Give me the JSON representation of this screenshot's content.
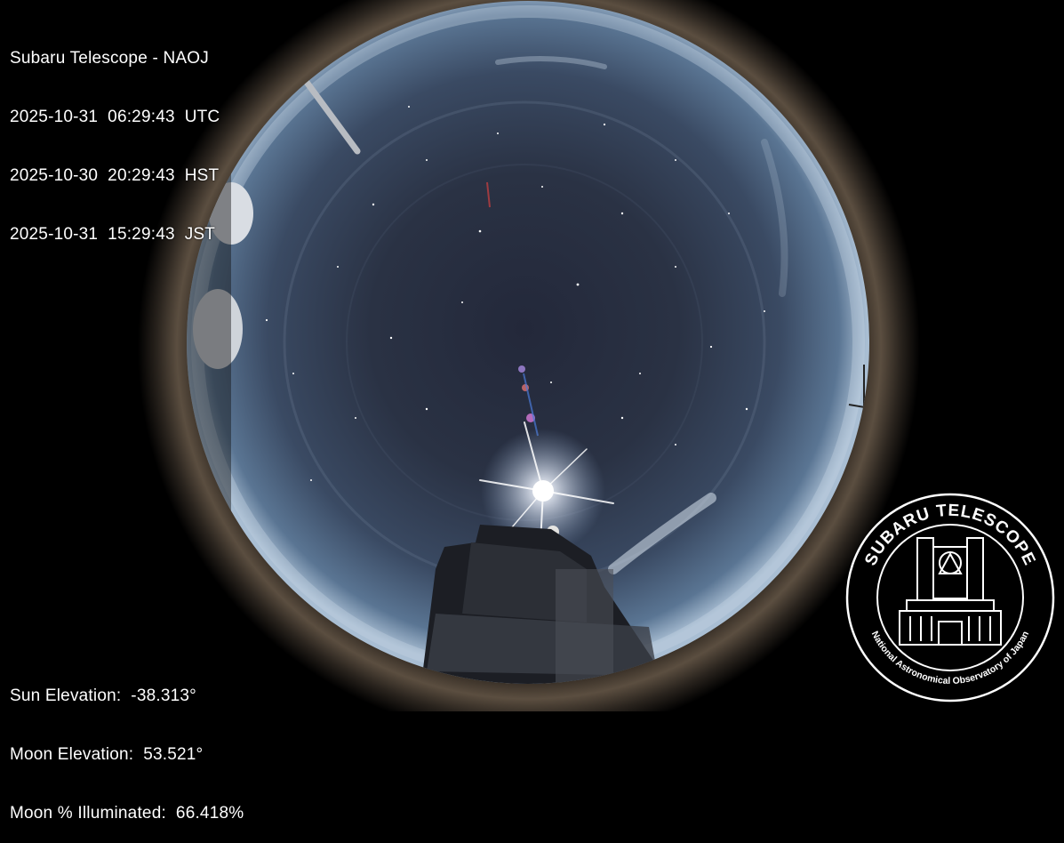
{
  "overlay": {
    "title": "Subaru Telescope - NAOJ",
    "timestamps": [
      {
        "date": "2025-10-31",
        "time": "06:29:43",
        "zone": "UTC"
      },
      {
        "date": "2025-10-30",
        "time": "20:29:43",
        "zone": "HST"
      },
      {
        "date": "2025-10-31",
        "time": "15:29:43",
        "zone": "JST"
      }
    ],
    "stats": [
      {
        "label": "Sun Elevation:",
        "value": "-38.313°"
      },
      {
        "label": "Moon Elevation:",
        "value": "53.521°"
      },
      {
        "label": "Moon % Illuminated:",
        "value": "66.418%"
      }
    ]
  },
  "logo": {
    "top_text": "SUBARU TELESCOPE",
    "bottom_text": "National Astronomical Observatory of Japan"
  },
  "colors": {
    "background": "#000000",
    "sky_center": "#262c3a",
    "sky_edge": "#4d6683",
    "lens_ring": "#4a3f35",
    "text": "#ffffff"
  }
}
